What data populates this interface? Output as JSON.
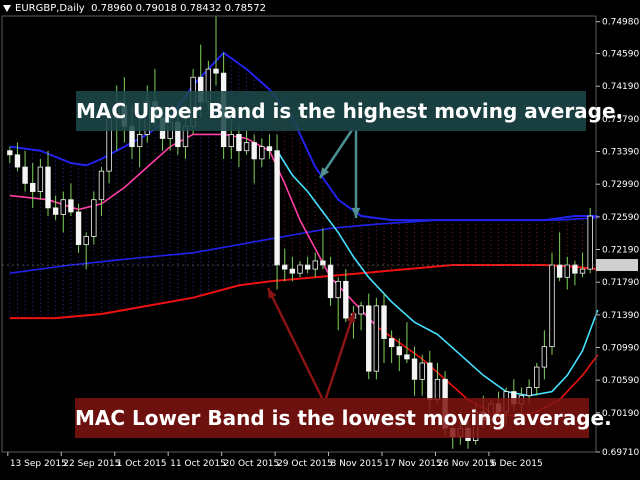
{
  "header": {
    "symbol": "EURGBP,Daily",
    "ohlc": "0.78960 0.79018 0.78432 0.78572"
  },
  "annotations": {
    "upper": "MAC Upper Band is the highest moving average.",
    "lower": "MAC Lower Band is the lowest moving average."
  },
  "colors": {
    "background": "#000000",
    "grid": "#5a5a5a",
    "candle": "#f5f5f5",
    "wick": "#7fd35a",
    "upper_band": "#2222ee",
    "lower_band": "#ee1111",
    "fast_upper": "#ff3fa6",
    "fast_lower": "#46e0ff",
    "lower_fill_dots": "#aa2222",
    "upper_fill_dots": "#3a3ad0",
    "price_marker": "#d0d0d0"
  },
  "chart_data": {
    "type": "candlestick",
    "instrument": "EURGBP",
    "timeframe": "Daily",
    "ylim": [
      0.6971,
      0.7505
    ],
    "y_ticks": [
      "0.74980",
      "0.74590",
      "0.74190",
      "0.73790",
      "0.73390",
      "0.72990",
      "0.72590",
      "0.72190",
      "0.71790",
      "0.71390",
      "0.70990",
      "0.70590",
      "0.70190",
      "0.69710"
    ],
    "x_ticks": [
      "13 Sep 2015",
      "22 Sep 2015",
      "1 Oct 2015",
      "11 Oct 2015",
      "20 Oct 2015",
      "29 Oct 2015",
      "8 Nov 2015",
      "17 Nov 2015",
      "26 Nov 2015",
      "6 Dec 2015"
    ],
    "current_price": 0.72,
    "candles": [
      [
        0.734,
        0.7345,
        0.7325,
        0.7335
      ],
      [
        0.7335,
        0.735,
        0.7315,
        0.732
      ],
      [
        0.732,
        0.734,
        0.729,
        0.73
      ],
      [
        0.73,
        0.7325,
        0.727,
        0.729
      ],
      [
        0.729,
        0.733,
        0.728,
        0.732
      ],
      [
        0.732,
        0.734,
        0.726,
        0.727
      ],
      [
        0.727,
        0.7285,
        0.7255,
        0.7262
      ],
      [
        0.7262,
        0.729,
        0.724,
        0.728
      ],
      [
        0.728,
        0.73,
        0.726,
        0.7265
      ],
      [
        0.7265,
        0.7275,
        0.7215,
        0.7225
      ],
      [
        0.7225,
        0.724,
        0.7195,
        0.7235
      ],
      [
        0.7235,
        0.729,
        0.7225,
        0.728
      ],
      [
        0.728,
        0.732,
        0.726,
        0.7315
      ],
      [
        0.7315,
        0.739,
        0.73,
        0.738
      ],
      [
        0.738,
        0.742,
        0.734,
        0.7395
      ],
      [
        0.7395,
        0.743,
        0.735,
        0.737
      ],
      [
        0.737,
        0.7395,
        0.733,
        0.7345
      ],
      [
        0.7345,
        0.738,
        0.732,
        0.736
      ],
      [
        0.736,
        0.742,
        0.735,
        0.74
      ],
      [
        0.74,
        0.744,
        0.737,
        0.738
      ],
      [
        0.738,
        0.7395,
        0.734,
        0.7355
      ],
      [
        0.7355,
        0.739,
        0.734,
        0.7375
      ],
      [
        0.7375,
        0.739,
        0.7335,
        0.7345
      ],
      [
        0.7345,
        0.738,
        0.733,
        0.737
      ],
      [
        0.737,
        0.744,
        0.736,
        0.743
      ],
      [
        0.743,
        0.747,
        0.738,
        0.74
      ],
      [
        0.74,
        0.745,
        0.739,
        0.744
      ],
      [
        0.744,
        0.7505,
        0.742,
        0.7435
      ],
      [
        0.7435,
        0.746,
        0.733,
        0.7345
      ],
      [
        0.7345,
        0.738,
        0.733,
        0.736
      ],
      [
        0.736,
        0.737,
        0.732,
        0.734
      ],
      [
        0.734,
        0.7365,
        0.7335,
        0.735
      ],
      [
        0.735,
        0.736,
        0.73,
        0.733
      ],
      [
        0.733,
        0.7355,
        0.732,
        0.7345
      ],
      [
        0.7345,
        0.736,
        0.733,
        0.734
      ],
      [
        0.734,
        0.736,
        0.717,
        0.72
      ],
      [
        0.72,
        0.722,
        0.718,
        0.7195
      ],
      [
        0.7195,
        0.721,
        0.718,
        0.719
      ],
      [
        0.719,
        0.7205,
        0.7185,
        0.72
      ],
      [
        0.72,
        0.721,
        0.719,
        0.7195
      ],
      [
        0.7195,
        0.7215,
        0.7185,
        0.7205
      ],
      [
        0.7205,
        0.7245,
        0.7195,
        0.72
      ],
      [
        0.72,
        0.721,
        0.715,
        0.716
      ],
      [
        0.716,
        0.7185,
        0.712,
        0.718
      ],
      [
        0.718,
        0.7195,
        0.713,
        0.7135
      ],
      [
        0.7135,
        0.715,
        0.711,
        0.714
      ],
      [
        0.714,
        0.7155,
        0.712,
        0.715
      ],
      [
        0.715,
        0.7165,
        0.706,
        0.707
      ],
      [
        0.707,
        0.716,
        0.706,
        0.715
      ],
      [
        0.715,
        0.7165,
        0.708,
        0.711
      ],
      [
        0.711,
        0.712,
        0.708,
        0.71
      ],
      [
        0.71,
        0.711,
        0.707,
        0.709
      ],
      [
        0.709,
        0.713,
        0.708,
        0.7085
      ],
      [
        0.7085,
        0.71,
        0.704,
        0.706
      ],
      [
        0.706,
        0.709,
        0.704,
        0.708
      ],
      [
        0.708,
        0.7095,
        0.702,
        0.7035
      ],
      [
        0.7035,
        0.708,
        0.703,
        0.706
      ],
      [
        0.706,
        0.707,
        0.699,
        0.7
      ],
      [
        0.7,
        0.7015,
        0.6975,
        0.699
      ],
      [
        0.699,
        0.702,
        0.698,
        0.7
      ],
      [
        0.7,
        0.701,
        0.6975,
        0.6985
      ],
      [
        0.6985,
        0.703,
        0.698,
        0.702
      ],
      [
        0.702,
        0.704,
        0.7,
        0.701
      ],
      [
        0.701,
        0.7035,
        0.7,
        0.703
      ],
      [
        0.703,
        0.7045,
        0.701,
        0.702
      ],
      [
        0.702,
        0.705,
        0.7005,
        0.7045
      ],
      [
        0.7045,
        0.706,
        0.702,
        0.703
      ],
      [
        0.703,
        0.705,
        0.7015,
        0.704
      ],
      [
        0.704,
        0.706,
        0.703,
        0.705
      ],
      [
        0.705,
        0.708,
        0.704,
        0.7075
      ],
      [
        0.7075,
        0.712,
        0.706,
        0.71
      ],
      [
        0.71,
        0.7215,
        0.709,
        0.72
      ],
      [
        0.72,
        0.724,
        0.718,
        0.7185
      ],
      [
        0.7185,
        0.721,
        0.717,
        0.72
      ],
      [
        0.72,
        0.7205,
        0.7175,
        0.719
      ],
      [
        0.719,
        0.7215,
        0.7185,
        0.7195
      ],
      [
        0.7195,
        0.727,
        0.719,
        0.726
      ]
    ],
    "series": [
      {
        "name": "MAC Upper Band",
        "color": "#2222ee",
        "values": [
          [
            0,
            0.7345
          ],
          [
            4,
            0.734
          ],
          [
            8,
            0.7325
          ],
          [
            10,
            0.7322
          ],
          [
            12,
            0.733
          ],
          [
            15,
            0.7345
          ],
          [
            18,
            0.736
          ],
          [
            21,
            0.738
          ],
          [
            24,
            0.742
          ],
          [
            28,
            0.746
          ],
          [
            31,
            0.744
          ],
          [
            34,
            0.7415
          ],
          [
            37,
            0.738
          ],
          [
            40,
            0.732
          ],
          [
            43,
            0.728
          ],
          [
            46,
            0.726
          ],
          [
            50,
            0.7255
          ],
          [
            55,
            0.7255
          ],
          [
            60,
            0.7255
          ],
          [
            65,
            0.7255
          ],
          [
            70,
            0.7255
          ],
          [
            74,
            0.726
          ],
          [
            77,
            0.726
          ]
        ]
      },
      {
        "name": "MAC Lower Band",
        "color": "#ee1111",
        "values": [
          [
            0,
            0.7135
          ],
          [
            6,
            0.7135
          ],
          [
            12,
            0.714
          ],
          [
            18,
            0.715
          ],
          [
            24,
            0.716
          ],
          [
            30,
            0.7175
          ],
          [
            34,
            0.718
          ],
          [
            40,
            0.7185
          ],
          [
            46,
            0.719
          ],
          [
            52,
            0.7195
          ],
          [
            58,
            0.72
          ],
          [
            64,
            0.72
          ],
          [
            70,
            0.72
          ],
          [
            74,
            0.7198
          ],
          [
            77,
            0.7195
          ]
        ]
      },
      {
        "name": "",
        "color": "#2222ee",
        "values": [
          [
            0,
            0.719
          ],
          [
            8,
            0.72
          ],
          [
            16,
            0.7208
          ],
          [
            24,
            0.7215
          ],
          [
            30,
            0.7225
          ],
          [
            36,
            0.7235
          ],
          [
            42,
            0.7245
          ],
          [
            48,
            0.725
          ],
          [
            56,
            0.7255
          ],
          [
            64,
            0.7255
          ],
          [
            72,
            0.7255
          ],
          [
            77,
            0.7258
          ]
        ]
      },
      {
        "name": "",
        "color": "#ff3fa6",
        "values": [
          [
            0,
            0.7285
          ],
          [
            5,
            0.728
          ],
          [
            9,
            0.7268
          ],
          [
            12,
            0.7275
          ],
          [
            15,
            0.7295
          ],
          [
            18,
            0.732
          ],
          [
            21,
            0.7345
          ],
          [
            24,
            0.736
          ],
          [
            28,
            0.736
          ],
          [
            31,
            0.7355
          ],
          [
            34,
            0.734
          ],
          [
            36,
            0.73
          ],
          [
            38,
            0.7255
          ],
          [
            40,
            0.722
          ],
          [
            42,
            0.7185
          ],
          [
            45,
            0.7155
          ],
          [
            48,
            0.7125
          ]
        ]
      },
      {
        "name": "",
        "color": "#ee1111",
        "values": [
          [
            48,
            0.7125
          ],
          [
            51,
            0.7105
          ],
          [
            54,
            0.7085
          ],
          [
            57,
            0.706
          ],
          [
            60,
            0.7035
          ],
          [
            63,
            0.702
          ],
          [
            66,
            0.7015
          ],
          [
            69,
            0.702
          ],
          [
            72,
            0.7035
          ],
          [
            75,
            0.7065
          ],
          [
            77,
            0.709
          ]
        ]
      },
      {
        "name": "",
        "color": "#46e0ff",
        "values": [
          [
            35,
            0.734
          ],
          [
            37,
            0.731
          ],
          [
            39,
            0.729
          ],
          [
            41,
            0.7265
          ],
          [
            43,
            0.724
          ],
          [
            45,
            0.721
          ],
          [
            47,
            0.7185
          ],
          [
            50,
            0.7155
          ],
          [
            53,
            0.713
          ],
          [
            56,
            0.7115
          ],
          [
            59,
            0.709
          ],
          [
            62,
            0.7065
          ],
          [
            65,
            0.7045
          ],
          [
            68,
            0.704
          ],
          [
            71,
            0.7045
          ],
          [
            73,
            0.7065
          ],
          [
            75,
            0.7095
          ],
          [
            77,
            0.7145
          ]
        ]
      }
    ]
  }
}
